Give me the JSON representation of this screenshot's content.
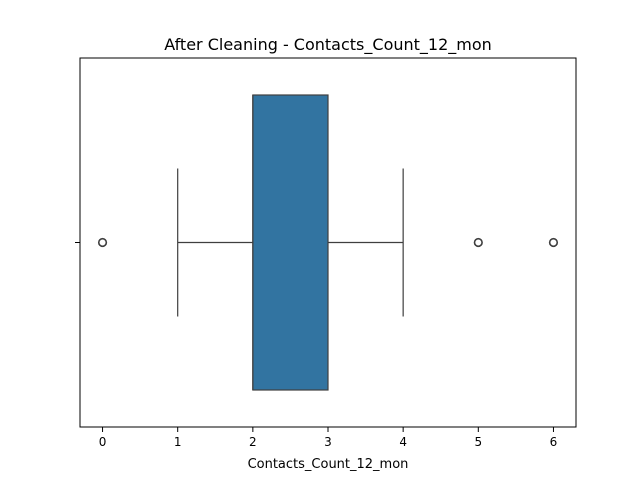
{
  "chart_data": {
    "type": "boxplot",
    "title": "After Cleaning - Contacts_Count_12_mon",
    "xlabel": "Contacts_Count_12_mon",
    "ylabel": "",
    "orientation": "horizontal",
    "xlim": [
      -0.3,
      6.3
    ],
    "xticks": [
      0,
      1,
      2,
      3,
      4,
      5,
      6
    ],
    "xtick_labels": [
      "0",
      "1",
      "2",
      "3",
      "4",
      "5",
      "6"
    ],
    "grid": false,
    "box": {
      "whisker_low": 1,
      "q1": 2,
      "median": 2,
      "q3": 3,
      "whisker_high": 4,
      "outliers": [
        0,
        5,
        6
      ],
      "color": "#3274a1",
      "line_color": "#3f3f3f"
    }
  }
}
